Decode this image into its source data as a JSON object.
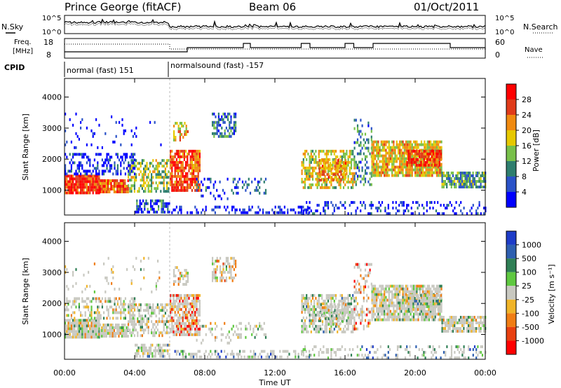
{
  "header": {
    "station": "Prince George (fitACF)",
    "beam": "Beam 06",
    "date": "01/Oct/2011"
  },
  "noise_panel": {
    "left_label": "N.Sky",
    "right_label": "N.Search",
    "left_ticks": [
      "10^5",
      "10^0"
    ],
    "right_ticks": [
      "10^5",
      "10^0"
    ]
  },
  "freq_panel": {
    "left_label_1": "Freq.",
    "left_label_2": "[MHz]",
    "right_label": "Nave",
    "left_ticks": [
      "18",
      "8"
    ],
    "right_ticks": [
      "60",
      "0"
    ]
  },
  "cpid_panel": {
    "label": "CPID",
    "modes": [
      {
        "name": "normal (fast) 151",
        "start_hour": 0,
        "end_hour": 6.0
      },
      {
        "name": "normalsound (fast) -157",
        "start_hour": 6.0,
        "end_hour": 24
      }
    ]
  },
  "x_axis": {
    "label": "Time UT",
    "ticks": [
      "00:00",
      "04:00",
      "08:00",
      "12:00",
      "16:00",
      "20:00",
      "00:00"
    ]
  },
  "power_colorbar": {
    "label": "Power [dB]",
    "ticks": [
      "4",
      "8",
      "12",
      "16",
      "20",
      "24",
      "28"
    ],
    "colors": [
      "#0000ff",
      "#2a52c8",
      "#2e7e6e",
      "#78c04a",
      "#e6c800",
      "#f08a10",
      "#e03b1a",
      "#ff0000"
    ]
  },
  "velocity_colorbar": {
    "label": "Velocity [m s⁻¹]",
    "ticks": [
      "1000",
      "500",
      "100",
      "25",
      "-25",
      "-100",
      "-500",
      "-1000"
    ],
    "colors": [
      "#1e3cc8",
      "#2e5fb0",
      "#2f7f55",
      "#5fc840",
      "#c8c8c0",
      "#f0b428",
      "#f07d14",
      "#e84010",
      "#ff0000"
    ]
  },
  "chart_data": {
    "type": "heatmap",
    "x_range_hours": [
      0,
      24
    ],
    "y_range_km": [
      200,
      4600
    ],
    "panels": [
      {
        "name": "Power",
        "ylabel": "Slant Range [km]",
        "yticks": [
          1000,
          2000,
          3000,
          4000
        ],
        "zlim": [
          0,
          30
        ]
      },
      {
        "name": "Velocity",
        "ylabel": "Slant Range [km]",
        "yticks": [
          1000,
          2000,
          3000,
          4000
        ],
        "zlim": [
          -1000,
          1000
        ]
      }
    ]
  }
}
